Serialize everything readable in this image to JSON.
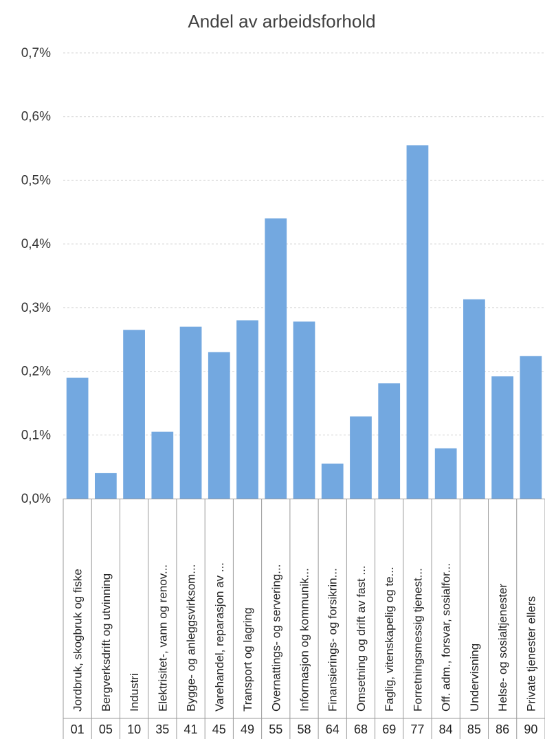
{
  "chart_data": {
    "type": "bar",
    "title": "Andel av arbeidsforhold",
    "xlabel": "",
    "ylabel": "",
    "ylim": [
      0,
      0.7
    ],
    "grid": true,
    "legend": "none",
    "bar_color": "#73A8E0",
    "y_ticks": [
      "0,0%",
      "0,1%",
      "0,2%",
      "0,3%",
      "0,4%",
      "0,5%",
      "0,6%",
      "0,7%"
    ],
    "codes": [
      "01",
      "05",
      "10",
      "35",
      "41",
      "45",
      "49",
      "55",
      "58",
      "64",
      "68",
      "69",
      "77",
      "84",
      "85",
      "86",
      "90"
    ],
    "categories": [
      "Jordbruk, skogbruk og fiske",
      "Bergverksdrift og utvinning",
      "Industri",
      "Elektrisitet-, vann og renov...",
      "Bygge- og anleggsvirksom...",
      "Varehandel, reparasjon av ...",
      "Transport og lagring",
      "Overnattings- og servering...",
      "Informasjon og kommunik...",
      "Finansierings- og forsikrin...",
      "Omsetning og drift av fast ...",
      "Faglig, vitenskapelig og te...",
      "Forretningsmessig tjenest...",
      "Off. adm., forsvar, sosialfor...",
      "Undervisning",
      "Helse- og sosialtjenester",
      "Private tjenester ellers"
    ],
    "values": [
      0.19,
      0.04,
      0.265,
      0.105,
      0.27,
      0.23,
      0.28,
      0.44,
      0.278,
      0.055,
      0.129,
      0.181,
      0.555,
      0.079,
      0.313,
      0.192,
      0.224
    ]
  }
}
